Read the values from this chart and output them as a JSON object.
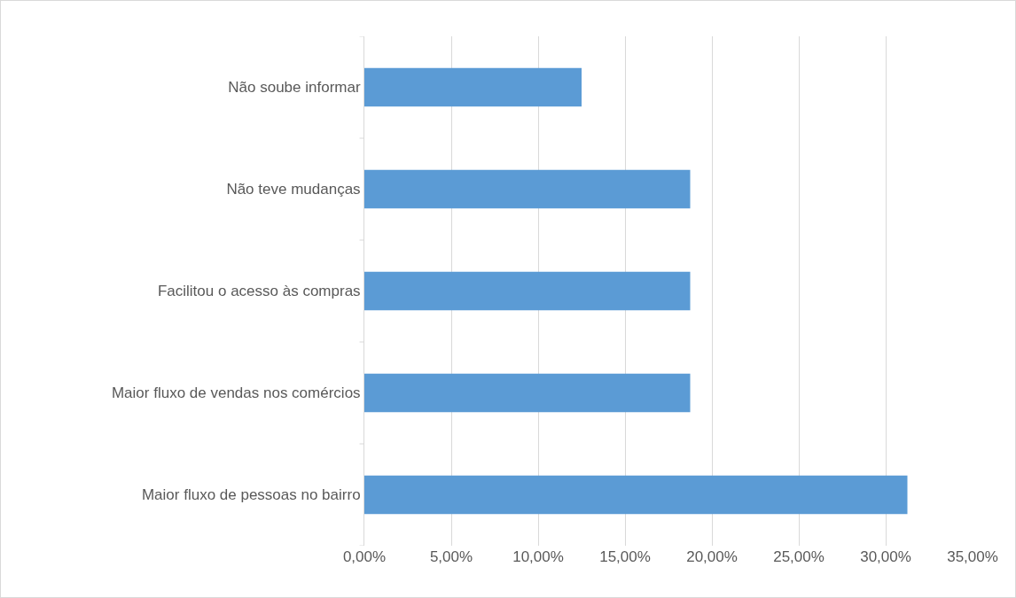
{
  "chart_data": {
    "type": "bar",
    "orientation": "horizontal",
    "categories": [
      "Não soube informar",
      "Não teve mudanças",
      "Facilitou o acesso às compras",
      "Maior fluxo de vendas nos comércios",
      "Maior fluxo de pessoas no bairro"
    ],
    "values": [
      12.5,
      18.75,
      18.75,
      18.75,
      31.25
    ],
    "color": "#5b9bd5",
    "xlim": [
      0,
      35
    ],
    "xticks": [
      {
        "value": 0,
        "label": "0,00%"
      },
      {
        "value": 5,
        "label": "5,00%"
      },
      {
        "value": 10,
        "label": "10,00%"
      },
      {
        "value": 15,
        "label": "15,00%"
      },
      {
        "value": 20,
        "label": "20,00%"
      },
      {
        "value": 25,
        "label": "25,00%"
      },
      {
        "value": 30,
        "label": "30,00%"
      },
      {
        "value": 35,
        "label": "35,00%"
      }
    ],
    "grid": "x",
    "legend": false
  }
}
